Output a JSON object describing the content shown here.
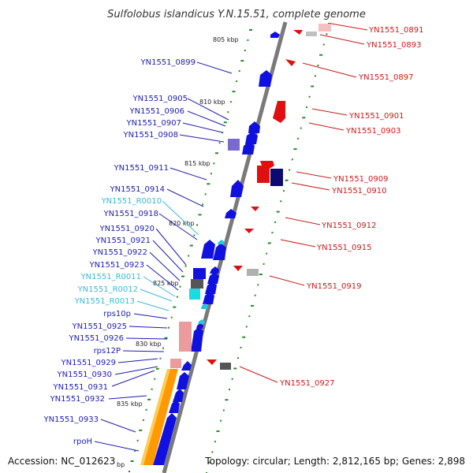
{
  "title": "Sulfolobus islandicus Y.N.15.51, complete genome",
  "footer": {
    "accession": "Accession: NC_012623",
    "topology": "Topology: circular; Length: 2,812,165 bp; Genes: 2,898"
  },
  "ruler_ticks": [
    "805 kbp",
    "810 kbp",
    "815 kbp",
    "820 kbp",
    "825 kbp",
    "830 kbp",
    "835 kbp",
    "bp"
  ],
  "left_labels": [
    {
      "text": "YN1551_0899",
      "color": "#1c1cb4"
    },
    {
      "text": "YN1551_0905",
      "color": "#1c1cb4"
    },
    {
      "text": "YN1551_0906",
      "color": "#1c1cb4"
    },
    {
      "text": "YN1551_0907",
      "color": "#1c1cb4"
    },
    {
      "text": "YN1551_0908",
      "color": "#1c1cb4"
    },
    {
      "text": "YN1551_0911",
      "color": "#1c1cb4"
    },
    {
      "text": "YN1551_0914",
      "color": "#1c1cb4"
    },
    {
      "text": "YN1551_R0010",
      "color": "#3ab8d8"
    },
    {
      "text": "YN1551_0918",
      "color": "#1c1cb4"
    },
    {
      "text": "YN1551_0920",
      "color": "#1c1cb4"
    },
    {
      "text": "YN1551_0921",
      "color": "#1c1cb4"
    },
    {
      "text": "YN1551_0922",
      "color": "#1c1cb4"
    },
    {
      "text": "YN1551_0923",
      "color": "#1c1cb4"
    },
    {
      "text": "YN1551_R0011",
      "color": "#3ab8d8"
    },
    {
      "text": "YN1551_R0012",
      "color": "#3ab8d8"
    },
    {
      "text": "YN1551_R0013",
      "color": "#3ab8d8"
    },
    {
      "text": "rps10p",
      "color": "#1c1cb4"
    },
    {
      "text": "YN1551_0925",
      "color": "#1c1cb4"
    },
    {
      "text": "YN1551_0926",
      "color": "#1c1cb4"
    },
    {
      "text": "rps12P",
      "color": "#1c1cb4"
    },
    {
      "text": "YN1551_0929",
      "color": "#1c1cb4"
    },
    {
      "text": "YN1551_0930",
      "color": "#1c1cb4"
    },
    {
      "text": "YN1551_0931",
      "color": "#1c1cb4"
    },
    {
      "text": "YN1551_0932",
      "color": "#1c1cb4"
    },
    {
      "text": "YN1551_0933",
      "color": "#1c1cb4"
    },
    {
      "text": "rpoH",
      "color": "#1c1cb4"
    }
  ],
  "right_labels": [
    {
      "text": "YN1551_0891",
      "color": "#cc1a1a"
    },
    {
      "text": "YN1551_0893",
      "color": "#cc1a1a"
    },
    {
      "text": "YN1551_0897",
      "color": "#cc1a1a"
    },
    {
      "text": "YN1551_0901",
      "color": "#cc1a1a"
    },
    {
      "text": "YN1551_0903",
      "color": "#cc1a1a"
    },
    {
      "text": "YN1551_0909",
      "color": "#cc1a1a"
    },
    {
      "text": "YN1551_0910",
      "color": "#cc1a1a"
    },
    {
      "text": "YN1551_0912",
      "color": "#cc1a1a"
    },
    {
      "text": "YN1551_0915",
      "color": "#cc1a1a"
    },
    {
      "text": "YN1551_0919",
      "color": "#cc1a1a"
    },
    {
      "text": "YN1551_0927",
      "color": "#cc1a1a"
    }
  ],
  "colors": {
    "forward_gene": "#1010e0",
    "reverse_gene": "#e01010",
    "rna_gene": "#20c8e0",
    "dot_track": "#228b22",
    "backbone": "#808080",
    "highlight": "#ff9900"
  }
}
